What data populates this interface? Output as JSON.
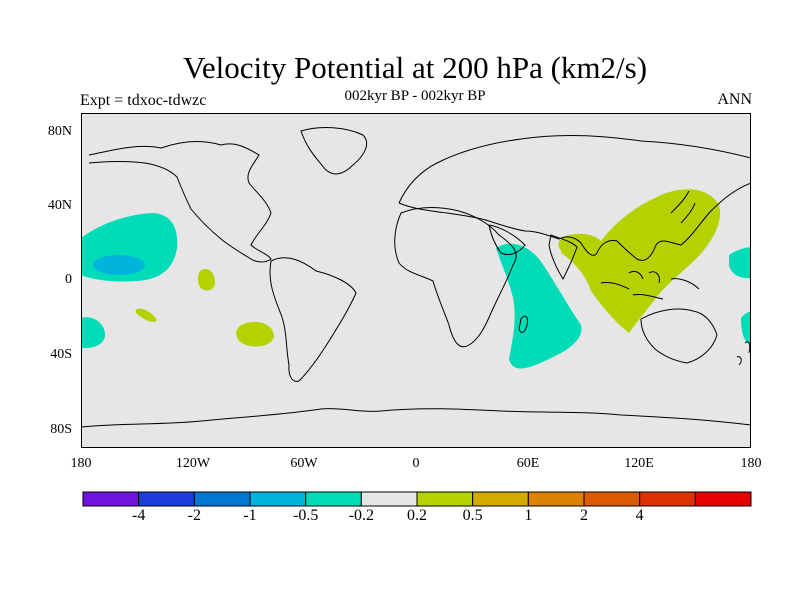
{
  "title": "Velocity Potential at 200 hPa (km2/s)",
  "subtitle": "002kyr BP - 002kyr BP",
  "left_label": "Expt = tdxoc-tdwzc",
  "right_label": "ANN",
  "map": {
    "lat_ticks": [
      "80N",
      "40N",
      "0",
      "40S",
      "80S"
    ],
    "lon_ticks": [
      "180",
      "120W",
      "60W",
      "0",
      "60E",
      "120E",
      "180"
    ],
    "background_color": "#e6e6e6",
    "regions": [
      {
        "name": "central-pacific-negative",
        "level": "-0.5 to -0.2",
        "color": "#00dcb8"
      },
      {
        "name": "central-pacific-core",
        "level": "-1 to -0.5",
        "color": "#00b4dc"
      },
      {
        "name": "africa-indian-ocean-negative",
        "level": "-0.5 to -0.2",
        "color": "#00dcb8"
      },
      {
        "name": "maritime-continent-positive",
        "level": "0.2 to 0.5",
        "color": "#b4d200"
      },
      {
        "name": "east-pacific-positive",
        "level": "0.2 to 0.5",
        "color": "#b4d200"
      },
      {
        "name": "south-pacific-negative",
        "level": "-0.5 to -0.2",
        "color": "#00dcb8"
      }
    ]
  },
  "colorbar": {
    "colors": [
      "#6e14dc",
      "#1e3cdc",
      "#0078d2",
      "#00b4dc",
      "#00dcb8",
      "#e6e6e6",
      "#b4d200",
      "#d2aa00",
      "#dc8200",
      "#dc5a00",
      "#dc3200",
      "#e60000"
    ],
    "labels": [
      "-4",
      "-2",
      "-1",
      "-0.5",
      "-0.2",
      "0.2",
      "0.5",
      "1",
      "2",
      "4"
    ]
  }
}
